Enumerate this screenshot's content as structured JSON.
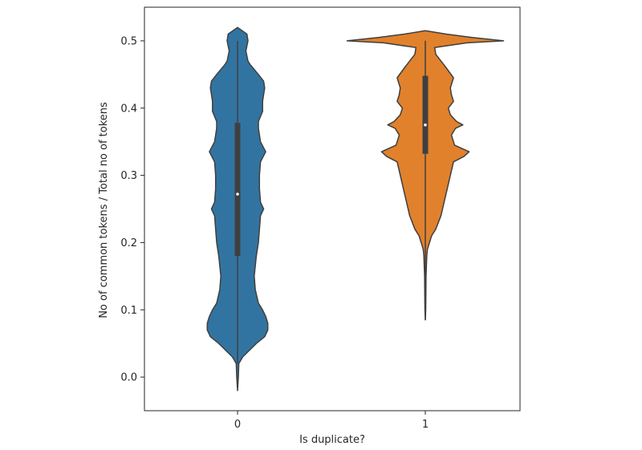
{
  "chart_data": {
    "type": "violin",
    "xlabel": "Is duplicate?",
    "ylabel": "No of common tokens / Total no of tokens",
    "ylim": [
      -0.05,
      0.55
    ],
    "yticks": [
      0.0,
      0.1,
      0.2,
      0.3,
      0.4,
      0.5
    ],
    "ytick_labels": [
      "0.0",
      "0.1",
      "0.2",
      "0.3",
      "0.4",
      "0.5"
    ],
    "categories": [
      "0",
      "1"
    ],
    "grid": false,
    "series": [
      {
        "category": "0",
        "color": "#3274a1",
        "min": -0.02,
        "max": 0.52,
        "q1": 0.18,
        "median": 0.272,
        "q3": 0.378,
        "whisker_low": 0.02,
        "whisker_high": 0.5,
        "density": [
          [
            -0.02,
            0.0
          ],
          [
            0.0,
            0.008
          ],
          [
            0.02,
            0.012
          ],
          [
            0.03,
            0.05
          ],
          [
            0.05,
            0.18
          ],
          [
            0.06,
            0.26
          ],
          [
            0.07,
            0.29
          ],
          [
            0.08,
            0.29
          ],
          [
            0.09,
            0.27
          ],
          [
            0.1,
            0.24
          ],
          [
            0.11,
            0.2
          ],
          [
            0.13,
            0.17
          ],
          [
            0.15,
            0.16
          ],
          [
            0.18,
            0.18
          ],
          [
            0.2,
            0.2
          ],
          [
            0.22,
            0.21
          ],
          [
            0.24,
            0.22
          ],
          [
            0.25,
            0.25
          ],
          [
            0.26,
            0.22
          ],
          [
            0.28,
            0.21
          ],
          [
            0.3,
            0.21
          ],
          [
            0.32,
            0.22
          ],
          [
            0.335,
            0.27
          ],
          [
            0.35,
            0.22
          ],
          [
            0.37,
            0.2
          ],
          [
            0.38,
            0.2
          ],
          [
            0.395,
            0.24
          ],
          [
            0.41,
            0.24
          ],
          [
            0.43,
            0.26
          ],
          [
            0.44,
            0.25
          ],
          [
            0.45,
            0.2
          ],
          [
            0.465,
            0.12
          ],
          [
            0.47,
            0.1
          ],
          [
            0.485,
            0.08
          ],
          [
            0.5,
            0.1
          ],
          [
            0.51,
            0.09
          ],
          [
            0.52,
            0.0
          ]
        ]
      },
      {
        "category": "1",
        "color": "#e1812c",
        "min": 0.085,
        "max": 0.515,
        "q1": 0.332,
        "median": 0.375,
        "q3": 0.448,
        "whisker_low": 0.085,
        "whisker_high": 0.5,
        "density": [
          [
            0.085,
            0.0
          ],
          [
            0.1,
            0.004
          ],
          [
            0.15,
            0.007
          ],
          [
            0.18,
            0.014
          ],
          [
            0.19,
            0.02
          ],
          [
            0.2,
            0.04
          ],
          [
            0.21,
            0.06
          ],
          [
            0.22,
            0.1
          ],
          [
            0.24,
            0.15
          ],
          [
            0.26,
            0.18
          ],
          [
            0.28,
            0.21
          ],
          [
            0.3,
            0.24
          ],
          [
            0.32,
            0.27
          ],
          [
            0.328,
            0.37
          ],
          [
            0.335,
            0.42
          ],
          [
            0.345,
            0.28
          ],
          [
            0.36,
            0.25
          ],
          [
            0.37,
            0.29
          ],
          [
            0.375,
            0.36
          ],
          [
            0.38,
            0.3
          ],
          [
            0.39,
            0.24
          ],
          [
            0.4,
            0.22
          ],
          [
            0.41,
            0.27
          ],
          [
            0.42,
            0.25
          ],
          [
            0.43,
            0.24
          ],
          [
            0.445,
            0.27
          ],
          [
            0.46,
            0.2
          ],
          [
            0.47,
            0.15
          ],
          [
            0.48,
            0.1
          ],
          [
            0.49,
            0.09
          ],
          [
            0.497,
            0.4
          ],
          [
            0.5,
            0.75
          ],
          [
            0.505,
            0.45
          ],
          [
            0.51,
            0.2
          ],
          [
            0.515,
            0.0
          ]
        ]
      }
    ]
  }
}
